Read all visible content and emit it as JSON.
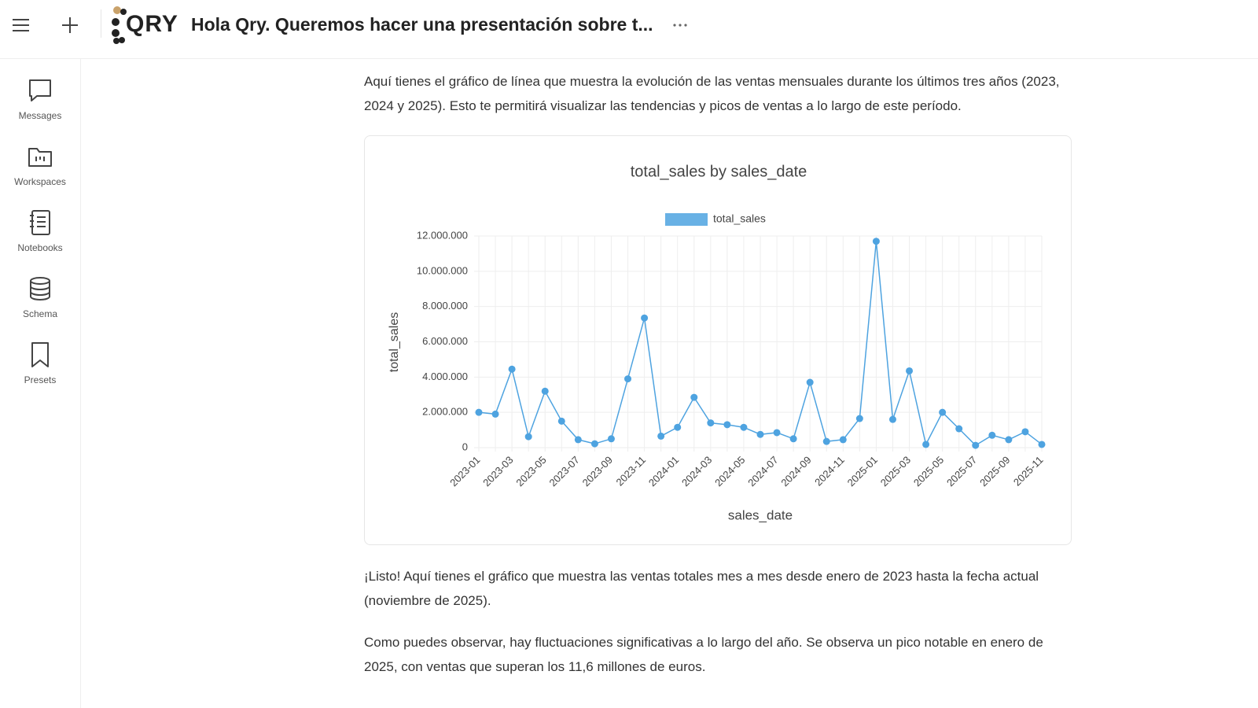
{
  "header": {
    "logo": "QRY",
    "title": "Hola Qry. Queremos hacer una presentación sobre t..."
  },
  "sidebar": {
    "items": [
      "Messages",
      "Workspaces",
      "Notebooks",
      "Schema",
      "Presets"
    ]
  },
  "messages": {
    "intro": "Aquí tienes el gráfico de línea que muestra la evolución de las ventas mensuales durante los últimos tres años (2023, 2024 y 2025). Esto te permitirá visualizar las tendencias y picos de ventas a lo largo de este período.",
    "after": [
      "¡Listo! Aquí tienes el gráfico que muestra las ventas totales mes a mes desde enero de 2023 hasta la fecha actual (noviembre de 2025).",
      "Como puedes observar, hay fluctuaciones significativas a lo largo del año. Se observa un pico notable en enero de 2025, con ventas que superan los 11,6 millones de euros."
    ]
  },
  "chart_data": {
    "type": "line",
    "title": "total_sales by sales_date",
    "x_label": "sales_date",
    "y_label": "total_sales",
    "categories": [
      "2023-01",
      null,
      "2023-03",
      null,
      "2023-05",
      null,
      "2023-07",
      null,
      "2023-09",
      null,
      "2023-11",
      null,
      "2024-01",
      null,
      "2024-03",
      null,
      "2024-05",
      null,
      "2024-07",
      null,
      "2024-09",
      null,
      "2024-11",
      null,
      "2025-01",
      null,
      "2025-03",
      null,
      "2025-05",
      null,
      "2025-07",
      null,
      "2025-09",
      null,
      "2025-11"
    ],
    "series": [
      {
        "name": "total_sales",
        "color": "#4ea3e0",
        "values": [
          2000000,
          1900000,
          4450000,
          620000,
          3200000,
          1500000,
          450000,
          220000,
          500000,
          3900000,
          7350000,
          650000,
          1150000,
          2850000,
          1400000,
          1300000,
          1150000,
          750000,
          850000,
          500000,
          3700000,
          350000,
          450000,
          1650000,
          11700000,
          1600000,
          4350000,
          180000,
          2000000,
          1070000,
          130000,
          700000,
          450000,
          900000,
          180000
        ]
      }
    ],
    "ylim": [
      0,
      12000000
    ],
    "yticks": [
      0,
      {
        "value": 2000000,
        "label": "2.000.000"
      },
      {
        "value": 4000000,
        "label": "4.000.000"
      },
      {
        "value": 6000000,
        "label": "6.000.000"
      },
      {
        "value": 8000000,
        "label": "8.000.000"
      },
      {
        "value": 10000000,
        "label": "10.000.000"
      },
      {
        "value": 12000000,
        "label": "12.000.000"
      }
    ],
    "grid": true,
    "legend": "top"
  }
}
